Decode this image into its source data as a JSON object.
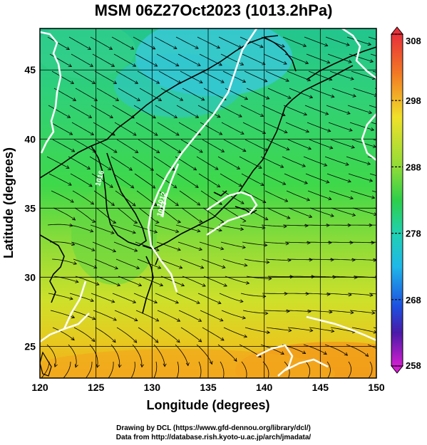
{
  "title": "MSM 06Z27Oct2023 (1013.2hPa)",
  "map": {
    "xlabel": "Longitude (degrees)",
    "ylabel": "Latitude  (degrees)",
    "lon_range": [
      120,
      150
    ],
    "lat_range": [
      22.7,
      48
    ],
    "lon_ticks": [
      "120",
      "125",
      "130",
      "135",
      "140",
      "145",
      "150"
    ],
    "lat_ticks": [
      "25",
      "30",
      "35",
      "40",
      "45"
    ],
    "contour_labels": [
      "1016",
      "1012",
      "1013"
    ]
  },
  "colorbar": {
    "ticks": [
      "308",
      "298",
      "288",
      "278",
      "268",
      "258"
    ],
    "range": [
      258,
      308
    ]
  },
  "credits": {
    "line1": "Drawing by DCL (https://www.gfd-dennou.org/library/dcl/)",
    "line2": "Data from http://database.rish.kyoto-u.ac.jp/arch/jmadata/"
  },
  "colors": {
    "ocean_north": "#2dd8d0",
    "field_green": "#3fd84a",
    "field_yellow": "#cfe02a",
    "field_orange": "#f2a81c",
    "coast": "#000000",
    "isobar": "#ffffff"
  }
}
